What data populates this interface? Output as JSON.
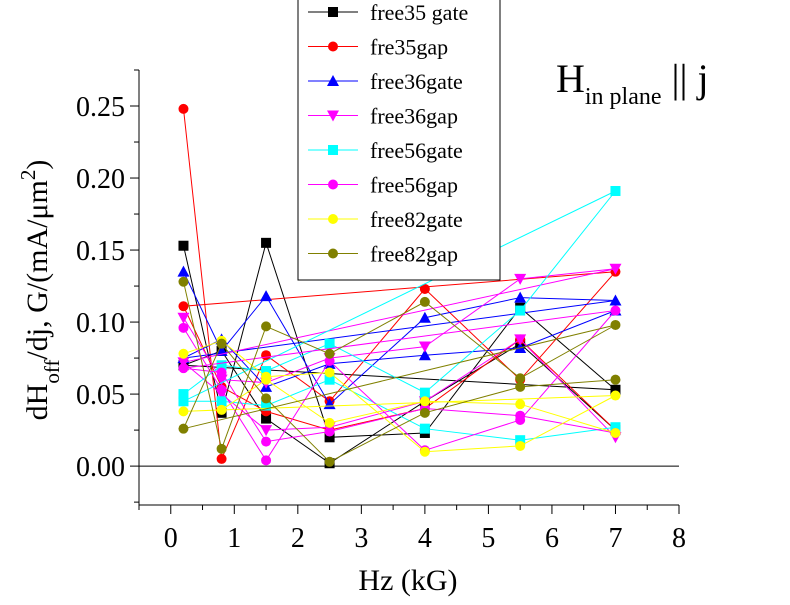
{
  "chart_data": {
    "type": "line",
    "xlabel": "Hz (kG)",
    "ylabel_parts": {
      "main": "dH",
      "sub": "off",
      "mid": "/dj, G/(mA/μm",
      "sup": "2",
      "end": ")"
    },
    "annotation": {
      "main": "H",
      "sub": "in plane",
      "end": " || j"
    },
    "xlim": [
      -0.5,
      8
    ],
    "ylim": [
      -0.027,
      0.275
    ],
    "xticks": [
      0,
      1,
      2,
      3,
      4,
      5,
      6,
      7,
      8
    ],
    "yticks": [
      0.0,
      0.05,
      0.1,
      0.15,
      0.2,
      0.25
    ],
    "ytick_labels": [
      "0.00",
      "0.05",
      "0.10",
      "0.15",
      "0.20",
      "0.25"
    ],
    "zero_line": true,
    "grid": false,
    "legend_position": "top-center",
    "series": [
      {
        "name": "free35 gate",
        "color": "#000000",
        "marker": "square",
        "points": [
          [
            0.2,
            0.153
          ],
          [
            0.8,
            0.037
          ],
          [
            1.5,
            0.155
          ],
          [
            2.5,
            0.02
          ],
          [
            4.0,
            0.023
          ],
          [
            5.5,
            0.11
          ],
          [
            7.0,
            0.053
          ],
          [
            0.2,
            0.07
          ],
          [
            0.8,
            0.08
          ],
          [
            1.5,
            0.033
          ],
          [
            2.5,
            0.002
          ],
          [
            4.0,
            0.045
          ],
          [
            5.5,
            0.085
          ],
          [
            7.0,
            0.025
          ]
        ]
      },
      {
        "name": "fre35gap",
        "color": "#ff0000",
        "marker": "circle",
        "points": [
          [
            0.2,
            0.248
          ],
          [
            0.8,
            0.005
          ],
          [
            1.5,
            0.077
          ],
          [
            2.5,
            0.045
          ],
          [
            4.0,
            0.123
          ],
          [
            5.5,
            0.06
          ],
          [
            7.0,
            0.135
          ],
          [
            0.2,
            0.111
          ],
          [
            0.8,
            0.055
          ],
          [
            1.5,
            0.038
          ],
          [
            2.5,
            0.025
          ],
          [
            4.0,
            0.04
          ],
          [
            5.5,
            0.088
          ],
          [
            7.0,
            0.025
          ]
        ]
      },
      {
        "name": "free36gate",
        "color": "#0000ff",
        "marker": "triangle-up",
        "points": [
          [
            0.2,
            0.135
          ],
          [
            0.8,
            0.08
          ],
          [
            1.5,
            0.118
          ],
          [
            2.5,
            0.043
          ],
          [
            4.0,
            0.103
          ],
          [
            5.5,
            0.117
          ],
          [
            7.0,
            0.115
          ],
          [
            0.2,
            0.075
          ],
          [
            0.8,
            0.088
          ],
          [
            1.5,
            0.055
          ],
          [
            2.5,
            0.071
          ],
          [
            4.0,
            0.077
          ],
          [
            5.5,
            0.082
          ],
          [
            7.0,
            0.108
          ]
        ]
      },
      {
        "name": "free36gap",
        "color": "#ff00ff",
        "marker": "triangle-down",
        "points": [
          [
            0.2,
            0.103
          ],
          [
            0.8,
            0.06
          ],
          [
            1.5,
            0.058
          ],
          [
            2.5,
            0.075
          ],
          [
            4.0,
            0.083
          ],
          [
            5.5,
            0.13
          ],
          [
            7.0,
            0.137
          ],
          [
            0.2,
            0.072
          ],
          [
            0.8,
            0.05
          ],
          [
            1.5,
            0.025
          ],
          [
            2.5,
            0.027
          ],
          [
            4.0,
            0.045
          ],
          [
            5.5,
            0.088
          ],
          [
            7.0,
            0.02
          ]
        ]
      },
      {
        "name": "free56gate",
        "color": "#00ffff",
        "marker": "square",
        "points": [
          [
            0.2,
            0.05
          ],
          [
            0.8,
            0.07
          ],
          [
            1.5,
            0.066
          ],
          [
            2.5,
            0.085
          ],
          [
            4.0,
            0.051
          ],
          [
            5.5,
            0.108
          ],
          [
            7.0,
            0.191
          ],
          [
            0.2,
            0.045
          ],
          [
            0.8,
            0.045
          ],
          [
            1.5,
            0.042
          ],
          [
            2.5,
            0.06
          ],
          [
            4.0,
            0.026
          ],
          [
            5.5,
            0.018
          ],
          [
            7.0,
            0.027
          ]
        ]
      },
      {
        "name": "free56gap",
        "color": "#ff00ff",
        "marker": "circle",
        "points": [
          [
            0.2,
            0.096
          ],
          [
            0.8,
            0.053
          ],
          [
            1.5,
            0.004
          ],
          [
            2.5,
            0.073
          ],
          [
            4.0,
            0.011
          ],
          [
            5.5,
            0.032
          ],
          [
            7.0,
            0.108
          ],
          [
            0.2,
            0.068
          ],
          [
            0.8,
            0.065
          ],
          [
            1.5,
            0.017
          ],
          [
            2.5,
            0.024
          ],
          [
            4.0,
            0.04
          ],
          [
            5.5,
            0.035
          ],
          [
            7.0,
            0.023
          ]
        ]
      },
      {
        "name": "free82gate",
        "color": "#ffff00",
        "marker": "circle",
        "points": [
          [
            0.2,
            0.078
          ],
          [
            0.8,
            0.087
          ],
          [
            1.5,
            0.062
          ],
          [
            2.5,
            0.065
          ],
          [
            4.0,
            0.01
          ],
          [
            5.5,
            0.014
          ],
          [
            7.0,
            0.049
          ],
          [
            0.2,
            0.038
          ],
          [
            0.8,
            0.039
          ],
          [
            1.5,
            0.06
          ],
          [
            2.5,
            0.03
          ],
          [
            4.0,
            0.045
          ],
          [
            5.5,
            0.043
          ],
          [
            7.0,
            0.023
          ]
        ]
      },
      {
        "name": "free82gap",
        "color": "#808000",
        "marker": "circle",
        "points": [
          [
            0.2,
            0.128
          ],
          [
            0.8,
            0.012
          ],
          [
            1.5,
            0.097
          ],
          [
            2.5,
            0.078
          ],
          [
            4.0,
            0.114
          ],
          [
            5.5,
            0.061
          ],
          [
            7.0,
            0.098
          ],
          [
            0.2,
            0.026
          ],
          [
            0.8,
            0.085
          ],
          [
            1.5,
            0.047
          ],
          [
            2.5,
            0.003
          ],
          [
            4.0,
            0.037
          ],
          [
            5.5,
            0.055
          ],
          [
            7.0,
            0.06
          ]
        ]
      }
    ]
  }
}
